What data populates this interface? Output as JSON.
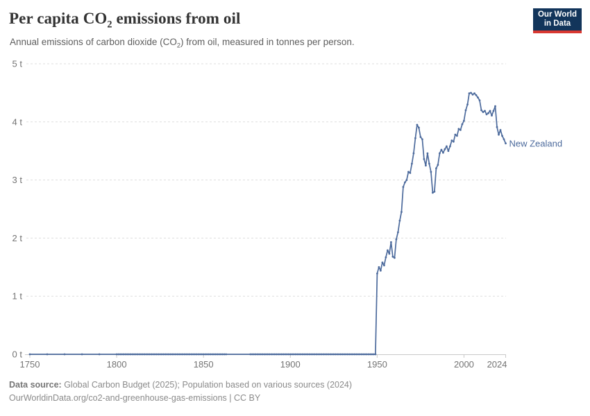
{
  "header": {
    "title_pre": "Per capita CO",
    "title_sub": "2",
    "title_post": " emissions from oil",
    "subtitle_pre": "Annual emissions of carbon dioxide (CO",
    "subtitle_sub": "2",
    "subtitle_post": ") from oil, measured in tonnes per person."
  },
  "logo": {
    "line1": "Our World",
    "line2": "in Data"
  },
  "footer": {
    "source_label": "Data source:",
    "source_text": " Global Carbon Budget (2025); Population based on various sources (2024)",
    "link_line": "OurWorldinData.org/co2-and-greenhouse-gas-emissions | CC BY"
  },
  "colors": {
    "line": "#4c6a9c",
    "entity_label": "#4c6a9c",
    "grid": "#dddddd",
    "axis": "#c8c8c8",
    "tick_label": "#737373",
    "logo_bg": "#12355b",
    "logo_accent": "#d93831"
  },
  "chart_data": {
    "type": "line",
    "title": "Per capita CO2 emissions from oil",
    "ylabel": "tonnes per person",
    "xlabel": "",
    "x_range": [
      1750,
      2024
    ],
    "ylim": [
      0,
      5
    ],
    "grid": "dashed-horizontal",
    "legend_position": "end-of-line-label",
    "y_ticks": [
      {
        "value": 0,
        "label": "0 t"
      },
      {
        "value": 1,
        "label": "1 t"
      },
      {
        "value": 2,
        "label": "2 t"
      },
      {
        "value": 3,
        "label": "3 t"
      },
      {
        "value": 4,
        "label": "4 t"
      },
      {
        "value": 5,
        "label": "5 t"
      }
    ],
    "x_ticks": [
      {
        "year": 1750,
        "label": "1750"
      },
      {
        "year": 1800,
        "label": "1800"
      },
      {
        "year": 1850,
        "label": "1850"
      },
      {
        "year": 1900,
        "label": "1900"
      },
      {
        "year": 1950,
        "label": "1950"
      },
      {
        "year": 2000,
        "label": "2000"
      },
      {
        "year": 2024,
        "label": "2024",
        "align": "end"
      }
    ],
    "series": [
      {
        "name": "New Zealand",
        "zero_value_segments": [
          {
            "from": 1750,
            "to": 1790,
            "step": 10,
            "value": 0
          },
          {
            "from": 1800,
            "to": 1863,
            "step": 1,
            "value": 0
          },
          {
            "from": 1877,
            "to": 1949,
            "step": 1,
            "value": 0
          }
        ],
        "annual_start": 1950,
        "annual_values": [
          1.39,
          1.5,
          1.44,
          1.58,
          1.53,
          1.67,
          1.79,
          1.73,
          1.93,
          1.68,
          1.66,
          1.98,
          2.1,
          2.3,
          2.45,
          2.88,
          2.96,
          3.0,
          3.14,
          3.12,
          3.28,
          3.46,
          3.72,
          3.95,
          3.9,
          3.74,
          3.7,
          3.36,
          3.25,
          3.46,
          3.28,
          3.14,
          2.78,
          2.8,
          3.2,
          3.26,
          3.46,
          3.52,
          3.47,
          3.53,
          3.58,
          3.5,
          3.58,
          3.68,
          3.66,
          3.78,
          3.76,
          3.88,
          3.86,
          3.96,
          4.02,
          4.2,
          4.3,
          4.49,
          4.5,
          4.47,
          4.49,
          4.46,
          4.42,
          4.37,
          4.2,
          4.17,
          4.19,
          4.13,
          4.15,
          4.19,
          4.11,
          4.19,
          4.27,
          3.91,
          3.78,
          3.86,
          3.76,
          3.7,
          3.63
        ]
      }
    ]
  }
}
